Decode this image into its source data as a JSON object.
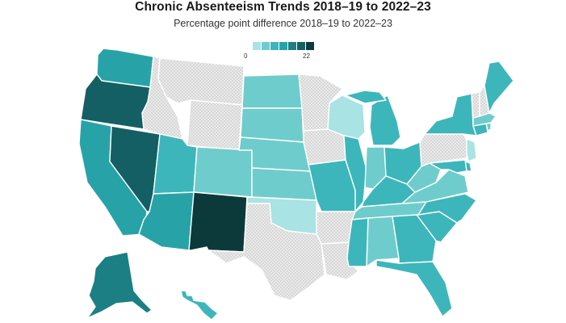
{
  "title": "Chronic Absenteeism Trends 2018–19 to 2022–23",
  "subtitle": "Percentage point difference 2018–19 to 2022–23",
  "legend": {
    "min": "0",
    "max": "22",
    "colors": [
      "#a9e3e3",
      "#6fcccc",
      "#3db6bb",
      "#27a3a8",
      "#1b7f83",
      "#145f63",
      "#0c3a3b"
    ]
  },
  "map": {
    "no_data_fill": "hatched-gray",
    "state_levels": {
      "WA": 4,
      "OR": 6,
      "CA": 4,
      "NV": 6,
      "ID": 0,
      "MT": 0,
      "WY": 0,
      "UT": 3,
      "AZ": 4,
      "CO": 2,
      "NM": 7,
      "ND": 2,
      "SD": 2,
      "NE": 2,
      "KS": 2,
      "OK": 1,
      "TX": 0,
      "MN": 0,
      "IA": 0,
      "MO": 3,
      "AR": 0,
      "LA": 0,
      "WI": 1,
      "IL": 3,
      "MI": 3,
      "IN": 2,
      "OH": 3,
      "KY": 3,
      "TN": 2,
      "MS": 3,
      "AL": 2,
      "GA": 3,
      "FL": 3,
      "SC": 3,
      "NC": 3,
      "VA": 2,
      "WV": 2,
      "PA": 0,
      "NY": 3,
      "ME": 3,
      "VT": 0,
      "NH": 0,
      "MA": 2,
      "RI": 2,
      "CT": 3,
      "NJ": 1,
      "DE": 3,
      "MD": 3,
      "AK": 5,
      "HI": 3
    }
  }
}
